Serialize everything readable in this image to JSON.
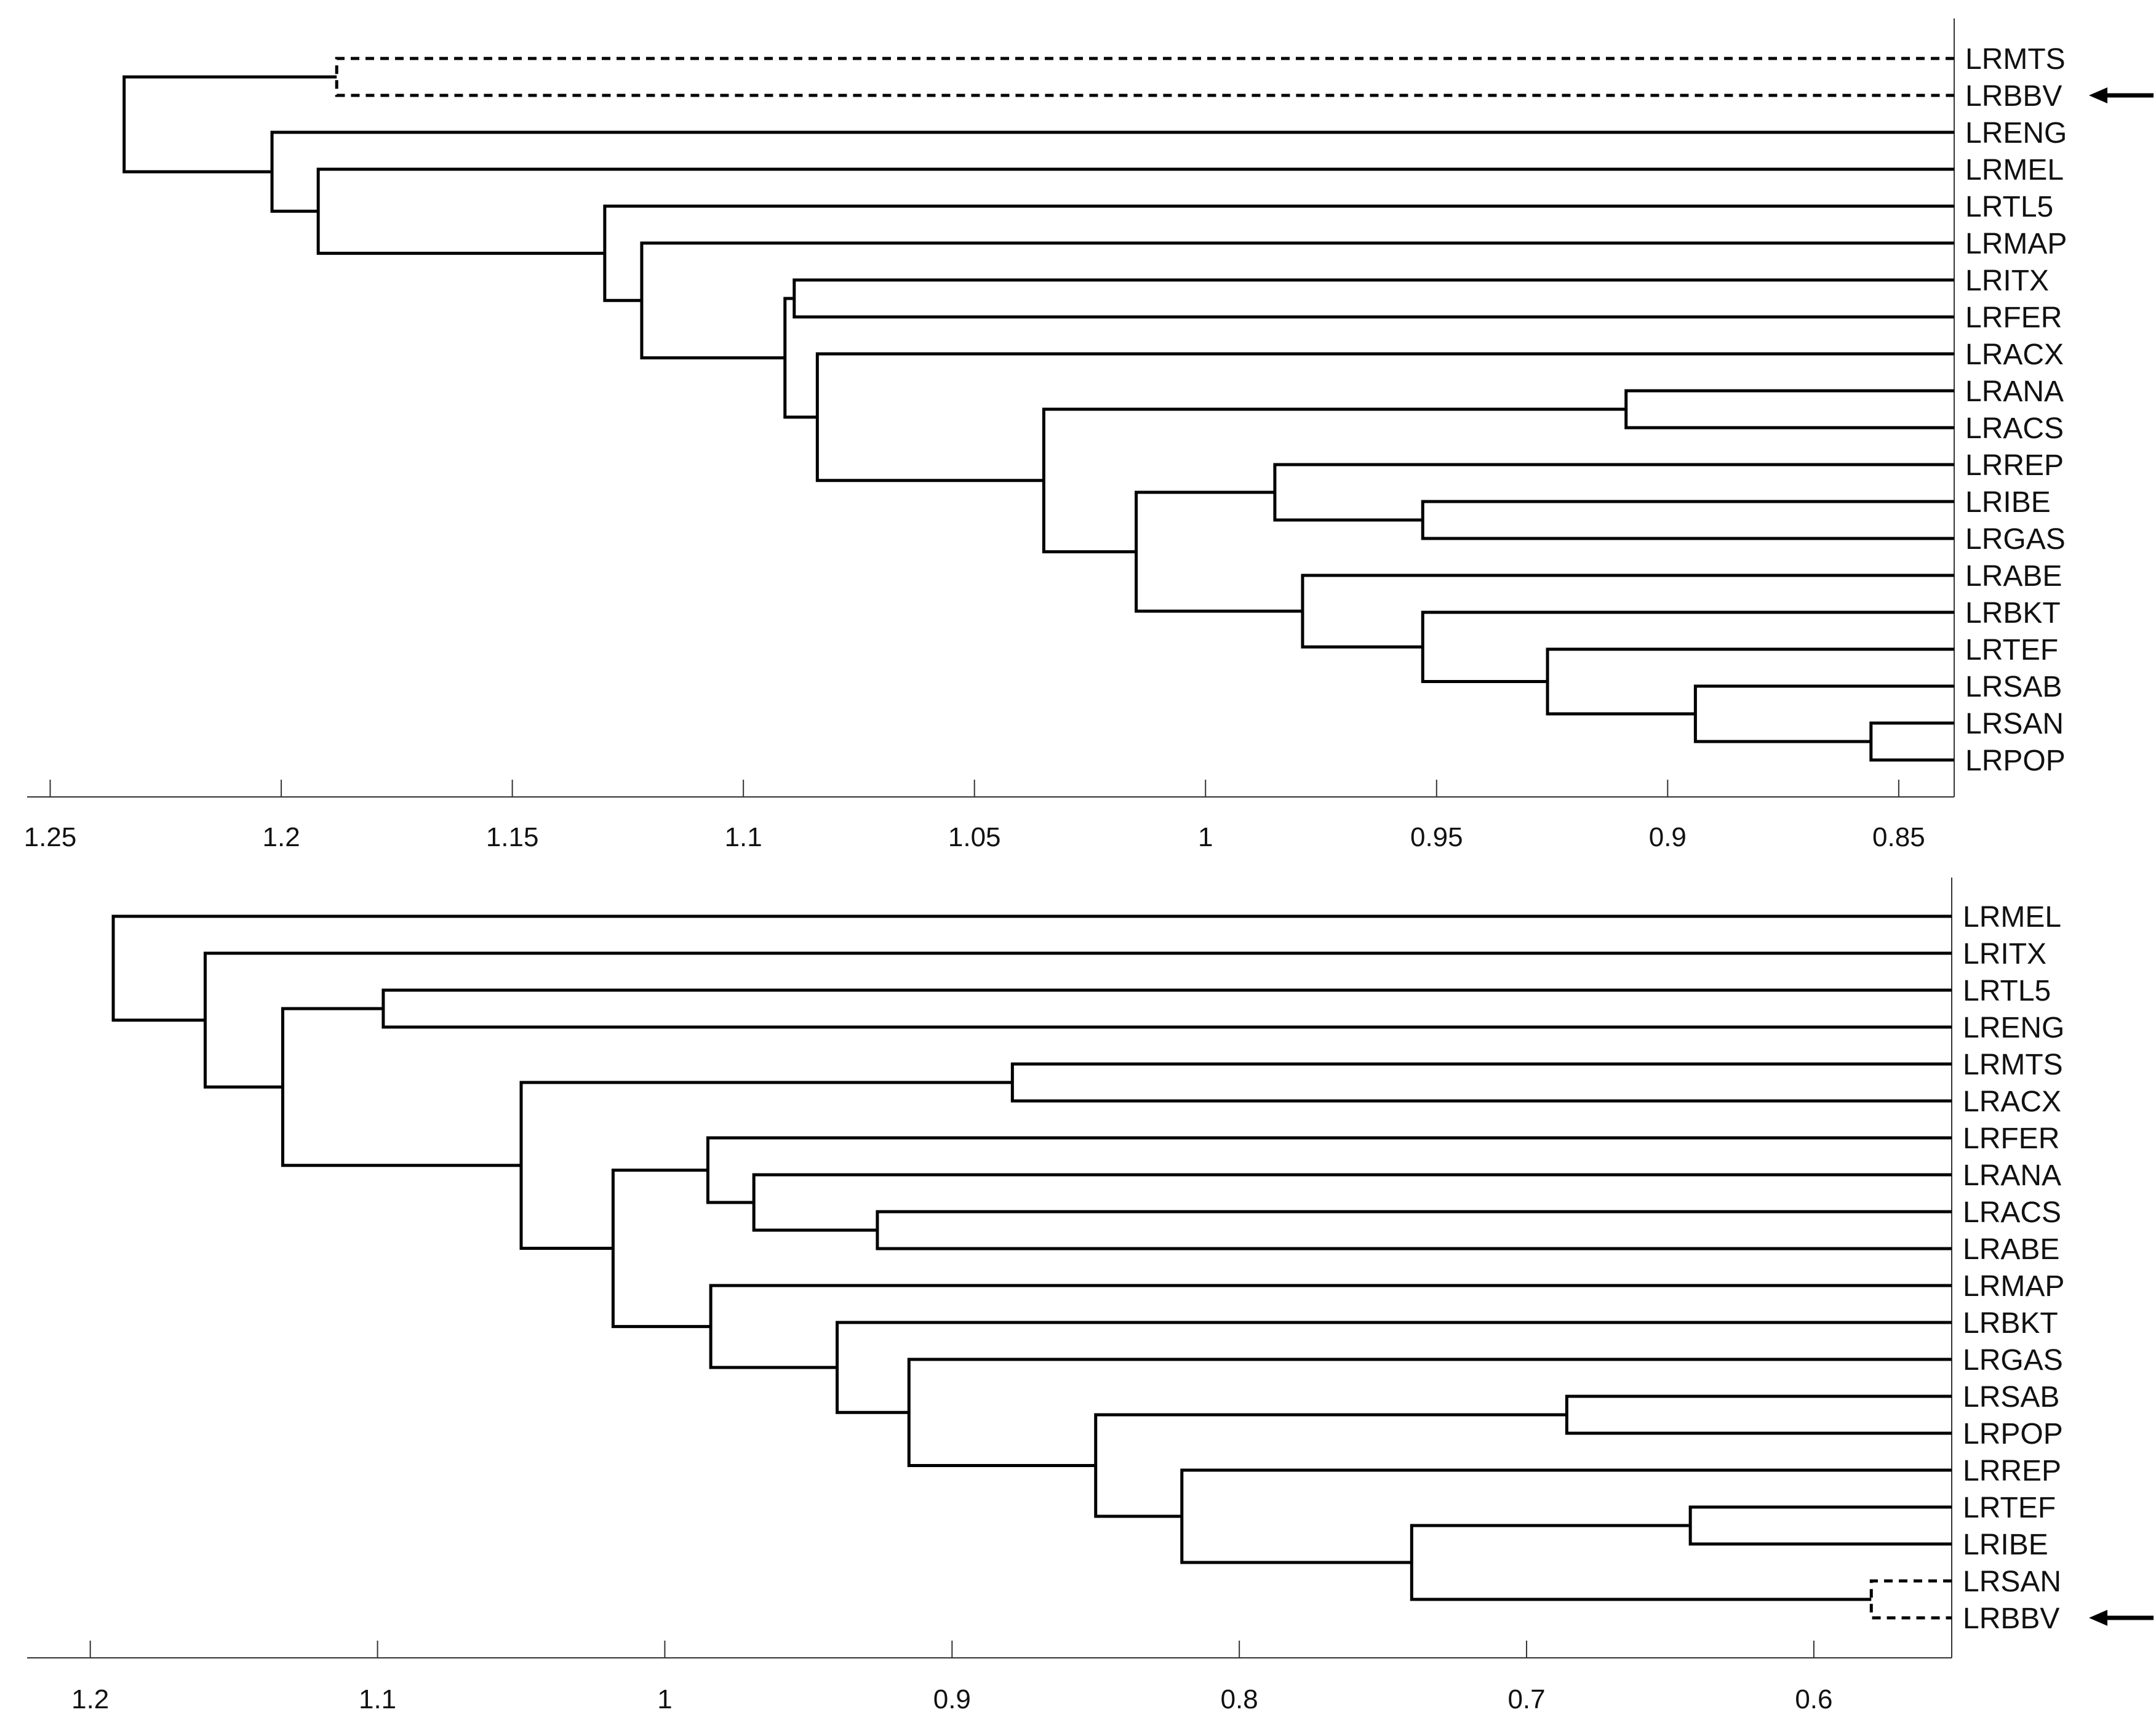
{
  "chart_data": [
    {
      "type": "dendrogram",
      "title": "",
      "xlabel": "",
      "ylabel": "",
      "orientation": "leaves-right",
      "xlim": [
        1.255,
        0.838
      ],
      "x_ticks": [
        1.25,
        1.2,
        1.15,
        1.1,
        1.05,
        1,
        0.95,
        0.9,
        0.85
      ],
      "x_tick_labels": [
        "1.25",
        "1.2",
        "1.15",
        "1.1",
        "1.05",
        "1",
        "0.95",
        "0.9",
        "0.85"
      ],
      "leaves": [
        "LRMTS",
        "LRBBV",
        "LRENG",
        "LRMEL",
        "LRTL5",
        "LRMAP",
        "LRITX",
        "LRFER",
        "LRACX",
        "LRANA",
        "LRACS",
        "LRREP",
        "LRIBE",
        "LRGAS",
        "LRABE",
        "LRBKT",
        "LRTEF",
        "LRSAB",
        "LRSAN",
        "LRPOP"
      ],
      "highlighted_leaf": "LRBBV",
      "merges": [
        {
          "left": "LRSAN",
          "right": "LRPOP",
          "height": 0.856,
          "dashed": false
        },
        {
          "left": "LRSAB",
          "right": "m1",
          "height": 0.894,
          "dashed": false
        },
        {
          "left": "LRTEF",
          "right": "m2",
          "height": 0.926,
          "dashed": false
        },
        {
          "left": "LRBKT",
          "right": "m3",
          "height": 0.953,
          "dashed": false
        },
        {
          "left": "LRABE",
          "right": "m4",
          "height": 0.979,
          "dashed": false
        },
        {
          "left": "LRIBE",
          "right": "LRGAS",
          "height": 0.953,
          "dashed": false
        },
        {
          "left": "LRREP",
          "right": "m6",
          "height": 0.985,
          "dashed": false
        },
        {
          "left": "m7",
          "right": "m5",
          "height": 1.015,
          "dashed": false
        },
        {
          "left": "LRANA",
          "right": "LRACS",
          "height": 0.909,
          "dashed": false
        },
        {
          "left": "m9",
          "right": "m8",
          "height": 1.035,
          "dashed": false
        },
        {
          "left": "LRACX",
          "right": "m10",
          "height": 1.084,
          "dashed": false
        },
        {
          "left": "LRITX",
          "right": "LRFER",
          "height": 1.089,
          "dashed": false
        },
        {
          "left": "m12",
          "right": "m11",
          "height": 1.091,
          "dashed": false
        },
        {
          "left": "LRMAP",
          "right": "m13",
          "height": 1.122,
          "dashed": false
        },
        {
          "left": "LRTL5",
          "right": "m14",
          "height": 1.13,
          "dashed": false
        },
        {
          "left": "LRMEL",
          "right": "m15",
          "height": 1.192,
          "dashed": false
        },
        {
          "left": "LRENG",
          "right": "m16",
          "height": 1.202,
          "dashed": false
        },
        {
          "left": "LRMTS",
          "right": "LRBBV",
          "height": 1.188,
          "dashed": true
        },
        {
          "left": "m18",
          "right": "m17",
          "height": 1.234,
          "dashed": false
        }
      ]
    },
    {
      "type": "dendrogram",
      "title": "",
      "xlabel": "",
      "ylabel": "",
      "orientation": "leaves-right",
      "xlim": [
        1.222,
        0.552
      ],
      "x_ticks": [
        1.2,
        1.1,
        1,
        0.9,
        0.8,
        0.7,
        0.6
      ],
      "x_tick_labels": [
        "1.2",
        "1.1",
        "1",
        "0.9",
        "0.8",
        "0.7",
        "0.6"
      ],
      "leaves": [
        "LRMEL",
        "LRITX",
        "LRTL5",
        "LRENG",
        "LRMTS",
        "LRACX",
        "LRFER",
        "LRANA",
        "LRACS",
        "LRABE",
        "LRMAP",
        "LRBKT",
        "LRGAS",
        "LRSAB",
        "LRPOP",
        "LRREP",
        "LRTEF",
        "LRIBE",
        "LRSAN",
        "LRBBV"
      ],
      "highlighted_leaf": "LRBBV",
      "merges": [
        {
          "left": "LRSAN",
          "right": "LRBBV",
          "height": 0.58,
          "dashed": true
        },
        {
          "left": "LRTEF",
          "right": "LRIBE",
          "height": 0.643,
          "dashed": false
        },
        {
          "left": "m2",
          "right": "m1",
          "height": 0.74,
          "dashed": false
        },
        {
          "left": "LRREP",
          "right": "m3",
          "height": 0.82,
          "dashed": false
        },
        {
          "left": "LRSAB",
          "right": "LRPOP",
          "height": 0.686,
          "dashed": false
        },
        {
          "left": "m5",
          "right": "m4",
          "height": 0.85,
          "dashed": false
        },
        {
          "left": "LRGAS",
          "right": "m6",
          "height": 0.915,
          "dashed": false
        },
        {
          "left": "LRBKT",
          "right": "m7",
          "height": 0.94,
          "dashed": false
        },
        {
          "left": "LRMAP",
          "right": "m8",
          "height": 0.984,
          "dashed": false
        },
        {
          "left": "LRACS",
          "right": "LRABE",
          "height": 0.926,
          "dashed": false
        },
        {
          "left": "LRANA",
          "right": "m10",
          "height": 0.969,
          "dashed": false
        },
        {
          "left": "LRFER",
          "right": "m11",
          "height": 0.985,
          "dashed": false
        },
        {
          "left": "m12",
          "right": "m9",
          "height": 1.018,
          "dashed": false
        },
        {
          "left": "LRMTS",
          "right": "LRACX",
          "height": 0.879,
          "dashed": false
        },
        {
          "left": "m14",
          "right": "m13",
          "height": 1.05,
          "dashed": false
        },
        {
          "left": "LRTL5",
          "right": "LRENG",
          "height": 1.098,
          "dashed": false
        },
        {
          "left": "m16",
          "right": "m15",
          "height": 1.133,
          "dashed": false
        },
        {
          "left": "LRITX",
          "right": "m17",
          "height": 1.16,
          "dashed": false
        },
        {
          "left": "LRMEL",
          "right": "m18",
          "height": 1.192,
          "dashed": false
        }
      ]
    }
  ]
}
